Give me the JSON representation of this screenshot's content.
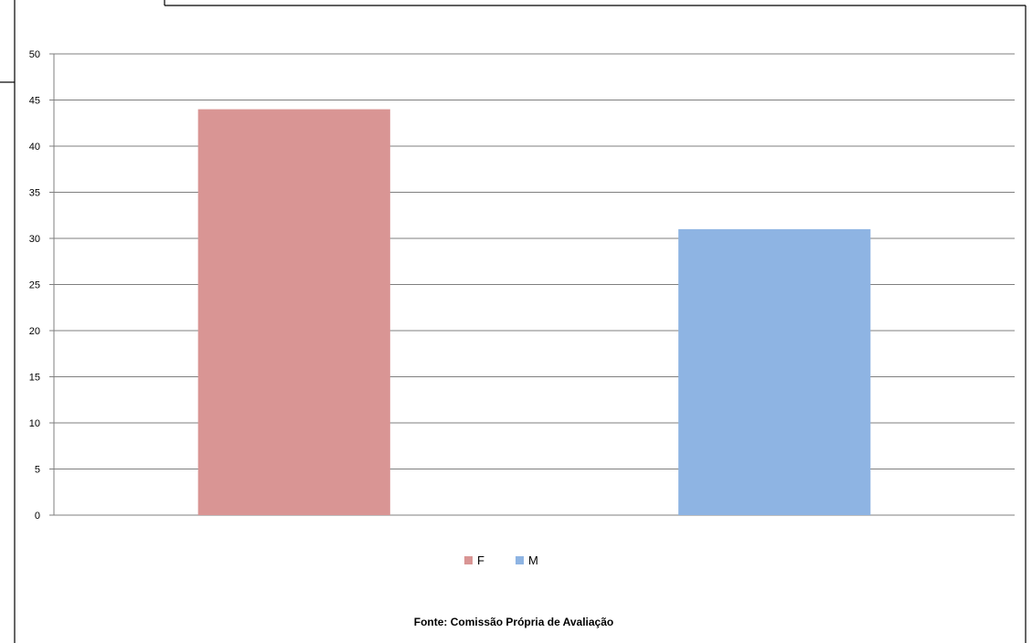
{
  "chart_data": {
    "type": "bar",
    "categories": [
      "F",
      "M"
    ],
    "values": [
      44,
      31
    ],
    "colors": [
      "#d99594",
      "#8eb4e3"
    ],
    "ylim": [
      0,
      50
    ],
    "yticks": [
      0,
      5,
      10,
      15,
      20,
      25,
      30,
      35,
      40,
      45,
      50
    ],
    "grid": true,
    "legend": {
      "placement": "bottom",
      "entries": [
        {
          "label": "F",
          "color": "#d99594"
        },
        {
          "label": "M",
          "color": "#8eb4e3"
        }
      ]
    },
    "source": "Fonte: Comissão Própria de Avaliação"
  }
}
